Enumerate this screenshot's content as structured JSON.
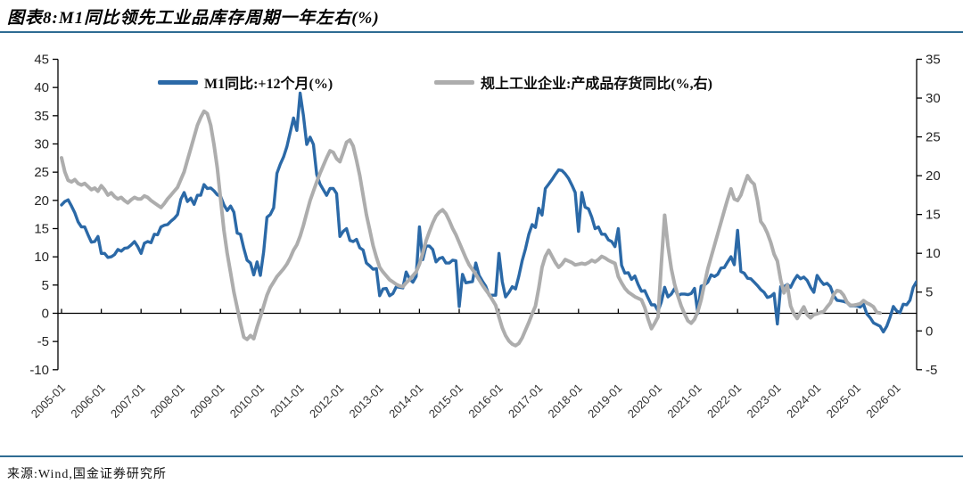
{
  "header": {
    "title": "图表8:M1同比领先工业品库存周期一年左右(%)"
  },
  "footer": {
    "source": "来源:Wind,国金证券研究所"
  },
  "colors": {
    "rule": "#2F6C93",
    "axis": "#000000",
    "m1_blue": "#2B69A7",
    "inventory_gray": "#ADADAD"
  },
  "legend": {
    "items": [
      {
        "label": "M1同比:+12个月(%)",
        "color": "#2B69A7"
      },
      {
        "label": "规上工业企业:产成品存货同比(%,右)",
        "color": "#ADADAD"
      }
    ]
  },
  "chart_data": {
    "type": "line",
    "title": "图表8:M1同比领先工业品库存周期一年左右(%)",
    "grid": false,
    "legend_position": "top",
    "left_axis": {
      "ticks": [
        45,
        40,
        35,
        30,
        25,
        20,
        15,
        10,
        5,
        0,
        -5,
        -10
      ],
      "range": [
        -10,
        45
      ]
    },
    "right_axis": {
      "ticks": [
        35,
        30,
        25,
        20,
        15,
        10,
        5,
        0,
        -5
      ],
      "range": [
        -5,
        35
      ]
    },
    "x_axis": {
      "start": "2005-01",
      "tick_labels": [
        "2005-01",
        "2006-01",
        "2007-01",
        "2008-01",
        "2009-01",
        "2010-01",
        "2011-01",
        "2012-01",
        "2013-01",
        "2014-01",
        "2015-01",
        "2016-01",
        "2017-01",
        "2018-01",
        "2019-01",
        "2020-01",
        "2021-01",
        "2022-01",
        "2023-01",
        "2024-01",
        "2025-01",
        "2026-01"
      ]
    },
    "series": [
      {
        "name": "M1同比:+12个月(%)",
        "axis": "left",
        "color": "#2B69A7",
        "stroke_width": 3.4,
        "start": "2005-01",
        "monthly_values": [
          19.2,
          19.8,
          20.1,
          19.0,
          17.8,
          16.2,
          15.3,
          15.3,
          13.9,
          12.6,
          12.7,
          13.6,
          10.6,
          10.6,
          9.9,
          10.0,
          10.4,
          11.3,
          11.0,
          11.5,
          11.6,
          12.1,
          12.7,
          11.8,
          10.6,
          12.4,
          12.7,
          12.5,
          14.0,
          13.9,
          15.3,
          15.6,
          15.7,
          16.3,
          16.8,
          17.5,
          20.2,
          21.4,
          19.8,
          20.4,
          19.3,
          20.9,
          20.9,
          22.8,
          22.1,
          22.2,
          21.7,
          21.0,
          20.7,
          19.2,
          18.2,
          19.0,
          17.9,
          14.2,
          14.0,
          11.5,
          9.4,
          8.9,
          6.8,
          9.1,
          6.7,
          10.9,
          17.0,
          17.5,
          18.7,
          24.8,
          26.4,
          27.7,
          29.5,
          32.0,
          34.6,
          32.4,
          39.0,
          35.0,
          29.9,
          31.2,
          29.9,
          24.6,
          22.9,
          21.9,
          20.9,
          22.1,
          22.1,
          21.2,
          13.6,
          14.5,
          15.0,
          12.9,
          12.7,
          13.1,
          11.6,
          11.2,
          8.9,
          8.4,
          7.8,
          7.9,
          3.1,
          4.3,
          4.4,
          3.1,
          3.5,
          4.7,
          4.6,
          4.5,
          7.3,
          6.1,
          5.5,
          6.5,
          15.3,
          9.5,
          11.9,
          11.9,
          11.3,
          9.1,
          9.7,
          9.9,
          8.9,
          8.9,
          9.4,
          9.3,
          1.2,
          6.9,
          5.4,
          5.5,
          5.6,
          8.9,
          6.7,
          5.7,
          4.8,
          3.2,
          3.2,
          3.2,
          10.6,
          5.6,
          2.9,
          3.7,
          4.7,
          4.3,
          6.6,
          9.3,
          11.4,
          14.0,
          15.7,
          15.2,
          18.6,
          17.4,
          22.1,
          22.9,
          23.7,
          24.6,
          25.4,
          25.3,
          24.7,
          23.9,
          22.7,
          21.4,
          14.5,
          21.4,
          18.8,
          18.5,
          17.0,
          15.0,
          15.3,
          14.0,
          14.0,
          13.0,
          12.7,
          11.8,
          15.0,
          8.5,
          7.1,
          7.2,
          6.0,
          6.6,
          5.1,
          3.9,
          4.0,
          2.7,
          1.5,
          1.5,
          0.4,
          2.0,
          4.6,
          2.9,
          3.4,
          4.4,
          3.1,
          3.4,
          3.4,
          3.3,
          3.5,
          4.4,
          0.0,
          4.8,
          5.0,
          5.5,
          6.8,
          6.5,
          6.9,
          8.0,
          8.1,
          9.1,
          10.0,
          8.6,
          14.7,
          7.4,
          7.1,
          6.2,
          6.1,
          5.5,
          4.9,
          4.2,
          3.7,
          2.8,
          3.0,
          3.5,
          -1.9,
          4.7,
          4.7,
          5.1,
          4.6,
          5.8,
          6.7,
          6.1,
          6.4,
          5.8,
          4.6,
          3.7,
          6.7,
          5.8,
          5.1,
          5.3,
          4.7,
          3.1,
          2.3,
          2.2,
          2.1,
          1.9,
          1.3,
          1.3,
          1.3,
          1.1,
          1.6,
          -0.1,
          -0.8,
          -1.7,
          -2.0,
          -2.3,
          -3.3,
          -2.3,
          -0.7,
          1.2,
          0.4,
          0.1,
          1.6,
          1.5,
          2.3,
          4.6,
          5.6
        ]
      },
      {
        "name": "规上工业企业:产成品存货同比(%,右)",
        "axis": "right",
        "color": "#ADADAD",
        "stroke_width": 4,
        "start": "2005-01",
        "monthly_values": [
          22.3,
          20.5,
          19.4,
          19.2,
          19.5,
          19.0,
          18.8,
          19.0,
          18.6,
          18.2,
          18.4,
          18.0,
          18.7,
          18.2,
          17.5,
          17.8,
          17.3,
          17.0,
          17.2,
          16.8,
          16.5,
          16.9,
          17.2,
          17.0,
          17.0,
          17.4,
          17.2,
          16.8,
          16.5,
          16.2,
          15.9,
          16.4,
          17.0,
          17.5,
          18.0,
          18.5,
          19.5,
          20.5,
          22.0,
          23.5,
          25.0,
          26.5,
          27.5,
          28.3,
          28.0,
          26.5,
          24.0,
          21.0,
          17.0,
          13.0,
          10.0,
          7.5,
          5.0,
          3.0,
          1.0,
          -0.8,
          -1.1,
          -0.6,
          -1.0,
          0.5,
          1.8,
          3.2,
          4.6,
          5.6,
          6.3,
          7.0,
          7.5,
          8.0,
          8.6,
          9.4,
          10.4,
          11.1,
          12.2,
          13.6,
          15.2,
          16.8,
          18.0,
          19.2,
          20.3,
          21.3,
          22.3,
          23.2,
          23.0,
          22.2,
          21.8,
          23.0,
          24.3,
          24.6,
          23.8,
          22.0,
          20.0,
          17.5,
          15.0,
          13.0,
          11.0,
          9.5,
          8.2,
          7.6,
          7.1,
          6.6,
          6.3,
          6.0,
          5.8,
          5.7,
          6.2,
          6.6,
          7.1,
          7.6,
          8.6,
          10.0,
          11.6,
          12.8,
          13.9,
          14.8,
          15.3,
          15.6,
          15.1,
          14.2,
          13.2,
          12.4,
          11.4,
          10.4,
          9.4,
          8.5,
          7.9,
          7.3,
          6.6,
          5.9,
          5.3,
          4.7,
          4.0,
          3.3,
          1.8,
          0.4,
          -0.6,
          -1.3,
          -1.7,
          -1.9,
          -1.6,
          -0.9,
          0.1,
          1.1,
          2.2,
          3.2,
          5.5,
          8.2,
          9.6,
          10.4,
          9.6,
          8.8,
          8.2,
          8.6,
          9.2,
          9.0,
          8.8,
          8.5,
          8.6,
          8.7,
          8.6,
          8.8,
          9.1,
          8.9,
          9.2,
          9.6,
          9.4,
          9.1,
          8.9,
          8.7,
          7.0,
          6.2,
          5.5,
          5.0,
          4.7,
          4.4,
          4.2,
          4.0,
          3.0,
          1.5,
          0.3,
          1.0,
          1.8,
          8.7,
          14.9,
          11.0,
          8.0,
          6.0,
          4.5,
          3.2,
          2.2,
          1.3,
          1.0,
          1.5,
          2.5,
          4.0,
          6.0,
          8.0,
          9.5,
          11.0,
          12.5,
          14.0,
          15.5,
          17.0,
          18.3,
          17.0,
          16.8,
          17.5,
          18.8,
          20.0,
          19.3,
          18.9,
          16.8,
          14.1,
          13.5,
          12.6,
          11.4,
          9.9,
          9.0,
          6.6,
          4.9,
          5.9,
          3.2,
          2.2,
          1.6,
          2.4,
          3.1,
          2.1,
          1.7,
          2.1,
          2.2,
          2.4,
          2.5,
          3.1,
          3.6,
          4.7,
          5.2,
          5.1,
          4.6,
          3.7,
          3.3,
          3.3,
          3.4,
          3.5,
          3.9,
          3.6,
          3.4,
          3.1,
          2.4,
          2.3
        ]
      }
    ]
  }
}
